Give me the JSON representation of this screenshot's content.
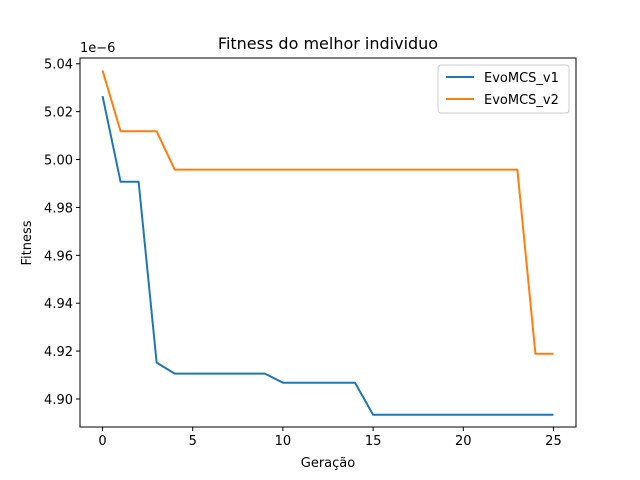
{
  "chart_data": {
    "type": "line",
    "title": "Fitness do melhor individuo",
    "xlabel": "Geração",
    "ylabel": "Fitness",
    "offset_label": "1e−6",
    "xlim": [
      -1.25,
      26.25
    ],
    "ylim": [
      4.8883,
      5.0424
    ],
    "x_ticks": [
      0,
      5,
      10,
      15,
      20,
      25
    ],
    "y_ticks": [
      4.9,
      4.92,
      4.94,
      4.96,
      4.98,
      5.0,
      5.02,
      5.04
    ],
    "y_tick_labels": [
      "4.90",
      "4.92",
      "4.94",
      "4.96",
      "4.98",
      "5.00",
      "5.02",
      "5.04"
    ],
    "x": [
      0,
      1,
      2,
      3,
      4,
      5,
      6,
      7,
      8,
      9,
      10,
      11,
      12,
      13,
      14,
      15,
      16,
      17,
      18,
      19,
      20,
      21,
      22,
      23,
      24,
      25
    ],
    "series": [
      {
        "name": "EvoMCS_v1",
        "color": "#1f77b4",
        "values": [
          5.0265,
          4.9907,
          4.9907,
          4.9152,
          4.9106,
          4.9106,
          4.9106,
          4.9106,
          4.9106,
          4.9106,
          4.9068,
          4.9068,
          4.9068,
          4.9068,
          4.9068,
          4.8934,
          4.8934,
          4.8934,
          4.8934,
          4.8934,
          4.8934,
          4.8934,
          4.8934,
          4.8934,
          4.8934,
          4.8934
        ]
      },
      {
        "name": "EvoMCS_v2",
        "color": "#ff7f0e",
        "values": [
          5.0372,
          5.0118,
          5.0118,
          5.0118,
          4.9958,
          4.9958,
          4.9958,
          4.9958,
          4.9958,
          4.9958,
          4.9958,
          4.9958,
          4.9958,
          4.9958,
          4.9958,
          4.9958,
          4.9958,
          4.9958,
          4.9958,
          4.9958,
          4.9958,
          4.9958,
          4.9958,
          4.9958,
          4.9189,
          4.9189
        ]
      }
    ],
    "legend_position": "upper-right",
    "grid": false
  }
}
